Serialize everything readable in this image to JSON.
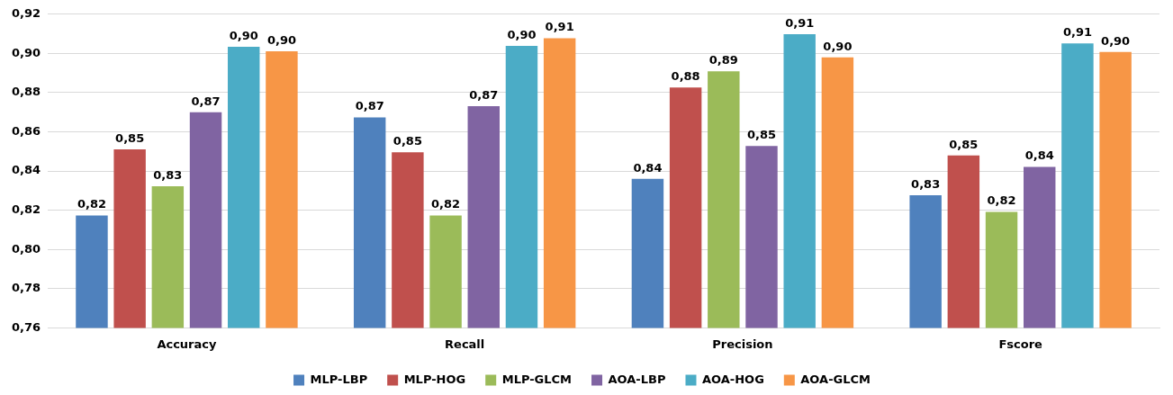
{
  "chart_data": {
    "type": "bar",
    "categories": [
      "Accuracy",
      "Recall",
      "Precision",
      "Fscore"
    ],
    "series": [
      {
        "name": "MLP-LBP",
        "color": "#4f81bd",
        "values": [
          0.8173,
          0.8673,
          0.836,
          0.8277
        ],
        "value_labels": [
          "0,82",
          "0,87",
          "0,84",
          "0,83"
        ]
      },
      {
        "name": "MLP-HOG",
        "color": "#c0504d",
        "values": [
          0.8511,
          0.8496,
          0.8826,
          0.848
        ],
        "value_labels": [
          "0,85",
          "0,85",
          "0,88",
          "0,85"
        ]
      },
      {
        "name": "MLP-GLCM",
        "color": "#9bbb59",
        "values": [
          0.8322,
          0.8173,
          0.8909,
          0.8192
        ],
        "value_labels": [
          "0,83",
          "0,82",
          "0,89",
          "0,82"
        ]
      },
      {
        "name": "AOA-LBP",
        "color": "#8064a2",
        "values": [
          0.87,
          0.8731,
          0.8528,
          0.8421
        ],
        "value_labels": [
          "0,87",
          "0,87",
          "0,85",
          "0,84"
        ]
      },
      {
        "name": "AOA-HOG",
        "color": "#4bacc6",
        "values": [
          0.9034,
          0.9039,
          0.9098,
          0.9051
        ],
        "value_labels": [
          "0,90",
          "0,90",
          "0,91",
          "0,91"
        ]
      },
      {
        "name": "AOA-GLCM",
        "color": "#f79646",
        "values": [
          0.9011,
          0.9078,
          0.898,
          0.9008
        ],
        "value_labels": [
          "0,90",
          "0,91",
          "0,90",
          "0,90"
        ]
      }
    ],
    "ylim": [
      0.76,
      0.92
    ],
    "yticks": [
      {
        "value": 0.76,
        "label": "0,76"
      },
      {
        "value": 0.78,
        "label": "0,78"
      },
      {
        "value": 0.8,
        "label": "0,80"
      },
      {
        "value": 0.82,
        "label": "0,82"
      },
      {
        "value": 0.84,
        "label": "0,84"
      },
      {
        "value": 0.86,
        "label": "0,86"
      },
      {
        "value": 0.88,
        "label": "0,88"
      },
      {
        "value": 0.9,
        "label": "0,90"
      },
      {
        "value": 0.92,
        "label": "0,92"
      }
    ],
    "grid": "y",
    "legend": "bottom"
  }
}
